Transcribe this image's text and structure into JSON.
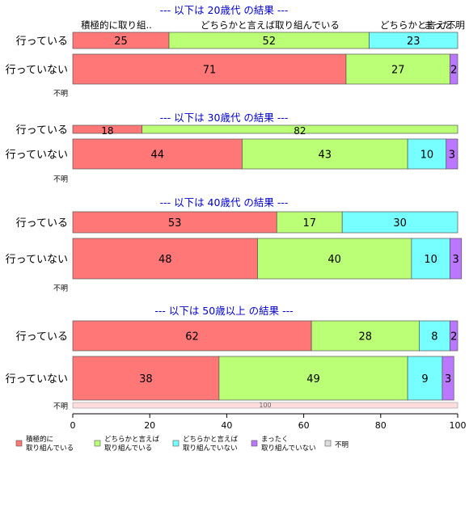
{
  "chart_data": {
    "type": "bar",
    "orientation": "horizontal",
    "stacked": true,
    "xlim": [
      0,
      100
    ],
    "x_ticks": [
      0,
      20,
      40,
      60,
      80,
      100
    ],
    "top_header": [
      "積極的に取り組..",
      "どちらかと言えば取り組んでいる",
      "どちらかと言え..",
      "まった..",
      "不明"
    ],
    "colors": {
      "active": "#FF7777",
      "somewhat_active": "#BBFF77",
      "somewhat_inactive": "#77FFFF",
      "not_at_all": "#BB77FF",
      "unknown": "#DDDDDD",
      "unknown_row": "#FFDDDD",
      "panel_title": "#0000CC"
    },
    "legend": [
      {
        "key": "active",
        "line1": "積極的に",
        "line2": "取り組んでいる"
      },
      {
        "key": "somewhat_active",
        "line1": "どちらかと言えば",
        "line2": "取り組んでいる"
      },
      {
        "key": "somewhat_inactive",
        "line1": "どちらかと言えば",
        "line2": "取り組んでいない"
      },
      {
        "key": "not_at_all",
        "line1": "まったく",
        "line2": "取り組んでいない"
      },
      {
        "key": "unknown",
        "line1": "不明",
        "line2": ""
      }
    ],
    "panels": [
      {
        "title": "--- 以下は 20歳代 の結果 ---",
        "rows": [
          {
            "label": "行っている",
            "values": [
              25,
              52,
              23,
              0,
              0
            ]
          },
          {
            "label": "行っていない",
            "values": [
              71,
              27,
              0,
              2,
              0
            ]
          },
          {
            "label": "不明",
            "values": []
          }
        ]
      },
      {
        "title": "--- 以下は 30歳代 の結果 ---",
        "rows": [
          {
            "label": "行っている",
            "values": [
              18,
              82,
              0,
              0,
              0
            ]
          },
          {
            "label": "行っていない",
            "values": [
              44,
              43,
              10,
              3,
              0
            ]
          },
          {
            "label": "不明",
            "values": []
          }
        ]
      },
      {
        "title": "--- 以下は 40歳代 の結果 ---",
        "rows": [
          {
            "label": "行っている",
            "values": [
              53,
              17,
              30,
              0,
              0
            ]
          },
          {
            "label": "行っていない",
            "values": [
              48,
              40,
              10,
              3,
              0
            ]
          },
          {
            "label": "不明",
            "values": []
          }
        ]
      },
      {
        "title": "--- 以下は 50歳以上 の結果 ---",
        "rows": [
          {
            "label": "行っている",
            "values": [
              62,
              28,
              8,
              2,
              0
            ]
          },
          {
            "label": "行っていない",
            "values": [
              38,
              49,
              9,
              3,
              0
            ]
          },
          {
            "label": "不明",
            "values": [],
            "unknown_value": 100
          }
        ]
      }
    ]
  }
}
